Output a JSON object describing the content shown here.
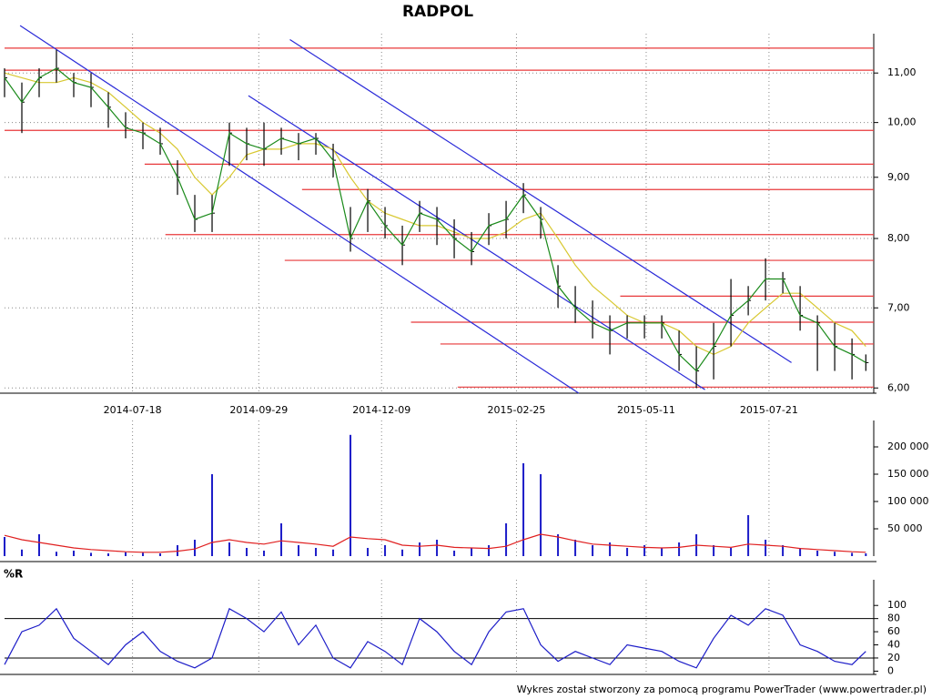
{
  "chart_data": [
    {
      "type": "ohlc",
      "title": "RADPOL",
      "x": [
        "2014-05-05",
        "2014-05-15",
        "2014-05-25",
        "2014-06-04",
        "2014-06-14",
        "2014-06-24",
        "2014-07-04",
        "2014-07-14",
        "2014-07-24",
        "2014-08-03",
        "2014-08-13",
        "2014-08-23",
        "2014-09-02",
        "2014-09-12",
        "2014-09-22",
        "2014-10-02",
        "2014-10-12",
        "2014-10-22",
        "2014-11-01",
        "2014-11-11",
        "2014-11-21",
        "2014-12-01",
        "2014-12-11",
        "2014-12-21",
        "2014-12-31",
        "2015-01-10",
        "2015-01-20",
        "2015-01-30",
        "2015-02-09",
        "2015-02-19",
        "2015-03-01",
        "2015-03-11",
        "2015-03-21",
        "2015-03-31",
        "2015-04-10",
        "2015-04-20",
        "2015-04-30",
        "2015-05-10",
        "2015-05-20",
        "2015-05-30",
        "2015-06-09",
        "2015-06-19",
        "2015-06-29",
        "2015-07-09",
        "2015-07-19",
        "2015-07-29",
        "2015-08-08",
        "2015-08-18",
        "2015-08-28",
        "2015-09-07",
        "2015-09-15"
      ],
      "high": [
        11.1,
        10.8,
        11.1,
        11.5,
        11.0,
        11.0,
        10.6,
        10.2,
        10.0,
        9.9,
        9.3,
        8.7,
        8.7,
        10.0,
        9.9,
        10.0,
        9.9,
        9.8,
        9.8,
        9.6,
        8.5,
        8.8,
        8.5,
        8.2,
        8.6,
        8.5,
        8.3,
        8.1,
        8.4,
        8.6,
        8.9,
        8.5,
        7.6,
        7.3,
        7.1,
        6.9,
        6.9,
        6.9,
        6.9,
        6.7,
        6.5,
        6.8,
        7.4,
        7.3,
        7.7,
        7.5,
        7.3,
        6.9,
        6.8,
        6.6,
        6.4
      ],
      "low": [
        10.5,
        9.8,
        10.5,
        10.8,
        10.5,
        10.3,
        9.9,
        9.7,
        9.5,
        9.4,
        8.7,
        8.1,
        8.1,
        9.2,
        9.3,
        9.2,
        9.4,
        9.3,
        9.4,
        9.0,
        7.8,
        8.1,
        8.0,
        7.6,
        8.1,
        7.9,
        7.7,
        7.6,
        7.9,
        8.0,
        8.4,
        8.0,
        7.0,
        6.8,
        6.6,
        6.4,
        6.6,
        6.6,
        6.6,
        6.2,
        6.0,
        6.1,
        6.5,
        6.9,
        7.1,
        7.2,
        6.7,
        6.2,
        6.2,
        6.1,
        6.2
      ],
      "close": [
        10.9,
        10.4,
        10.9,
        11.1,
        10.8,
        10.7,
        10.3,
        9.9,
        9.8,
        9.6,
        9.0,
        8.3,
        8.4,
        9.8,
        9.6,
        9.5,
        9.7,
        9.6,
        9.7,
        9.3,
        8.0,
        8.6,
        8.2,
        7.9,
        8.4,
        8.3,
        8.0,
        7.8,
        8.2,
        8.3,
        8.7,
        8.3,
        7.3,
        7.0,
        6.8,
        6.7,
        6.8,
        6.8,
        6.8,
        6.4,
        6.2,
        6.5,
        6.9,
        7.1,
        7.4,
        7.4,
        6.9,
        6.8,
        6.5,
        6.4,
        6.3
      ],
      "color": "#000000",
      "close_line_color": "#1a8a1a",
      "moving_average": {
        "color": "#d8c830",
        "values": [
          11.0,
          10.9,
          10.8,
          10.8,
          10.9,
          10.8,
          10.6,
          10.3,
          10.0,
          9.8,
          9.5,
          9.0,
          8.7,
          9.0,
          9.4,
          9.5,
          9.5,
          9.6,
          9.6,
          9.5,
          9.0,
          8.6,
          8.4,
          8.3,
          8.2,
          8.2,
          8.1,
          8.0,
          8.0,
          8.1,
          8.3,
          8.4,
          8.0,
          7.6,
          7.3,
          7.1,
          6.9,
          6.8,
          6.8,
          6.7,
          6.5,
          6.4,
          6.5,
          6.8,
          7.0,
          7.2,
          7.2,
          7.0,
          6.8,
          6.7,
          6.5
        ]
      },
      "hlines": {
        "color": "#e8383a",
        "lines": [
          {
            "value": 11.54,
            "start": "2014-05-05"
          },
          {
            "value": 11.06,
            "start": "2014-05-05"
          },
          {
            "value": 9.85,
            "start": "2014-05-05"
          },
          {
            "value": 9.23,
            "start": "2014-07-25"
          },
          {
            "value": 8.79,
            "start": "2014-10-24"
          },
          {
            "value": 8.06,
            "start": "2014-08-06"
          },
          {
            "value": 7.67,
            "start": "2014-10-14"
          },
          {
            "value": 7.16,
            "start": "2015-04-26"
          },
          {
            "value": 6.81,
            "start": "2014-12-26"
          },
          {
            "value": 6.53,
            "start": "2015-01-12"
          },
          {
            "value": 6.01,
            "start": "2015-01-22"
          }
        ]
      },
      "trend_lines": {
        "color": "#2a2ad8",
        "lines": [
          {
            "points": [
              [
                "2014-05-14",
                12.05
              ],
              [
                "2015-04-02",
                5.94
              ]
            ]
          },
          {
            "points": [
              [
                "2014-09-23",
                10.53
              ],
              [
                "2015-06-14",
                5.98
              ]
            ]
          },
          {
            "points": [
              [
                "2014-10-17",
                11.73
              ],
              [
                "2015-08-03",
                6.3
              ]
            ]
          }
        ]
      },
      "xlim": [
        "2014-05-05",
        "2015-09-18"
      ],
      "xticks": [
        "2014-07-18",
        "2014-09-29",
        "2014-12-09",
        "2015-02-25",
        "2015-05-11",
        "2015-07-21"
      ],
      "ylim": [
        5.94,
        11.7
      ],
      "log": true,
      "yticks": [
        {
          "value": 6,
          "label": "6,00"
        },
        {
          "value": 7,
          "label": "7,00"
        },
        {
          "value": 8,
          "label": "8,00"
        },
        {
          "value": 9,
          "label": "9,00"
        },
        {
          "value": 10,
          "label": "10,00"
        },
        {
          "value": 11,
          "label": "11,00"
        }
      ],
      "grid": true
    },
    {
      "type": "bar",
      "color": "#1c1cc8",
      "values": [
        35000,
        12000,
        40000,
        8000,
        10000,
        6000,
        5000,
        7000,
        6000,
        5000,
        20000,
        30000,
        150000,
        25000,
        15000,
        10000,
        60000,
        20000,
        15000,
        12000,
        222000,
        15000,
        20000,
        12000,
        25000,
        30000,
        10000,
        15000,
        20000,
        60000,
        170000,
        150000,
        40000,
        30000,
        20000,
        25000,
        15000,
        20000,
        15000,
        25000,
        40000,
        20000,
        15000,
        75000,
        30000,
        20000,
        15000,
        10000,
        8000,
        6000,
        5000
      ],
      "moving_average": {
        "color": "#e02020",
        "values": [
          38000,
          30000,
          25000,
          20000,
          15000,
          12000,
          10000,
          8000,
          7000,
          7000,
          9000,
          13000,
          25000,
          30000,
          25000,
          22000,
          28000,
          25000,
          22000,
          18000,
          35000,
          32000,
          30000,
          20000,
          18000,
          20000,
          16000,
          15000,
          14000,
          18000,
          30000,
          40000,
          35000,
          28000,
          22000,
          20000,
          18000,
          16000,
          15000,
          16000,
          20000,
          18000,
          16000,
          22000,
          20000,
          18000,
          14000,
          12000,
          10000,
          8000,
          7000
        ]
      },
      "ylim": [
        0,
        235000
      ],
      "yticks": [
        {
          "value": 50000,
          "label": "50 000"
        },
        {
          "value": 100000,
          "label": "100 000"
        },
        {
          "value": 150000,
          "label": "150 000"
        },
        {
          "value": 200000,
          "label": "200 000"
        }
      ],
      "grid": true
    },
    {
      "type": "line",
      "title": "%R",
      "color": "#1c1cc8",
      "values": [
        10,
        60,
        70,
        95,
        50,
        30,
        10,
        40,
        60,
        30,
        15,
        5,
        20,
        95,
        80,
        60,
        90,
        40,
        70,
        20,
        5,
        45,
        30,
        10,
        80,
        60,
        30,
        10,
        60,
        90,
        95,
        40,
        15,
        30,
        20,
        10,
        40,
        35,
        30,
        15,
        5,
        50,
        85,
        70,
        95,
        85,
        40,
        30,
        15,
        10,
        30
      ],
      "ref_lines": [
        20,
        80
      ],
      "ylim": [
        -5,
        128
      ],
      "yticks": [
        0,
        20,
        40,
        60,
        80,
        100
      ],
      "grid": true
    }
  ],
  "footer": "Wykres został stworzony za pomocą programu PowerTrader (www.powertrader.pl)"
}
